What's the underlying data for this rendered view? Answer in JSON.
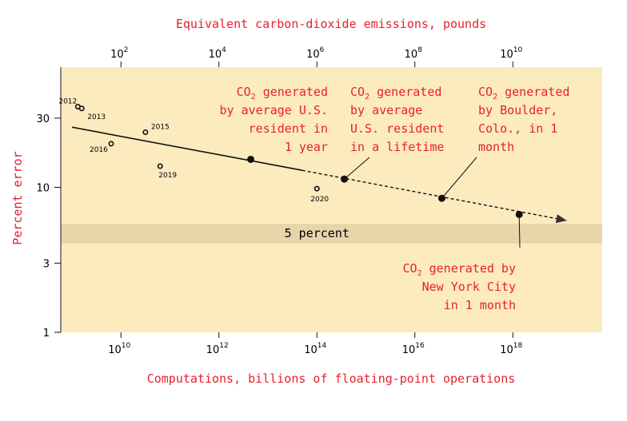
{
  "chart_data": {
    "type": "scatter",
    "title_top": "Equivalent carbon-dioxide emissions, pounds",
    "xlabel": "Computations, billions of floating-point operations",
    "ylabel": "Percent error",
    "x_scale": "log10",
    "y_scale": "log10",
    "xlim_log10": [
      8.6,
      19.5
    ],
    "ylim": [
      1,
      60
    ],
    "x_ticks": [
      {
        "exp": 10,
        "base": "10",
        "sup": "10"
      },
      {
        "exp": 12,
        "base": "10",
        "sup": "12"
      },
      {
        "exp": 14,
        "base": "10",
        "sup": "14"
      },
      {
        "exp": 16,
        "base": "10",
        "sup": "16"
      },
      {
        "exp": 18,
        "base": "10",
        "sup": "18"
      }
    ],
    "top_ticks": [
      {
        "exp": 2,
        "base": "10",
        "sup": "2"
      },
      {
        "exp": 4,
        "base": "10",
        "sup": "4"
      },
      {
        "exp": 6,
        "base": "10",
        "sup": "6"
      },
      {
        "exp": 8,
        "base": "10",
        "sup": "8"
      },
      {
        "exp": 10,
        "base": "10",
        "sup": "10"
      }
    ],
    "top_axis_map": {
      "ref_compute_exp": 10,
      "ref_co2_exp": 2,
      "slope": 1.0
    },
    "y_ticks": [
      {
        "value": 30,
        "label": "30"
      },
      {
        "value": 10,
        "label": "10"
      },
      {
        "value": 3,
        "label": "3"
      },
      {
        "value": 1,
        "label": "1"
      }
    ],
    "band": {
      "label": "5 percent",
      "y_low": 4.1,
      "y_high": 5.6
    },
    "models": [
      {
        "label": "2012",
        "x_log": 9.12,
        "y": 36
      },
      {
        "label": "2013",
        "x_log": 9.2,
        "y": 35
      },
      {
        "label": "2015",
        "x_log": 10.5,
        "y": 24
      },
      {
        "label": "2016",
        "x_log": 9.8,
        "y": 20
      },
      {
        "label": "2019",
        "x_log": 10.8,
        "y": 14
      },
      {
        "label": "2020",
        "x_log": 14.0,
        "y": 9.8
      }
    ],
    "trend_solid": [
      {
        "x_log": 9.0,
        "y": 26
      },
      {
        "x_log": 13.7,
        "y": 13.1
      }
    ],
    "trend_dashed": [
      {
        "x_log": 13.7,
        "y": 13.1
      },
      {
        "x_log": 19.1,
        "y": 5.9
      }
    ],
    "milestones": [
      {
        "x_log": 12.65,
        "y": 15.6
      },
      {
        "x_log": 14.56,
        "y": 11.4
      },
      {
        "x_log": 16.55,
        "y": 8.4
      },
      {
        "x_log": 18.13,
        "y": 6.5
      }
    ],
    "annotations": [
      {
        "lines": [
          [
            "CO",
            "2",
            " generated"
          ],
          [
            "by average U.S."
          ],
          [
            "resident in"
          ],
          [
            "1 year"
          ]
        ],
        "align": "end"
      },
      {
        "lines": [
          [
            "CO",
            "2",
            " generated"
          ],
          [
            "by average"
          ],
          [
            "U.S. resident"
          ],
          [
            "in a lifetime"
          ]
        ],
        "align": "start"
      },
      {
        "lines": [
          [
            "CO",
            "2",
            " generated"
          ],
          [
            "by Boulder,"
          ],
          [
            "Colo., in 1"
          ],
          [
            "month"
          ]
        ],
        "align": "start"
      },
      {
        "lines": [
          [
            "CO",
            "2",
            " generated by"
          ],
          [
            "New York City"
          ],
          [
            "in 1 month"
          ]
        ],
        "align": "end"
      }
    ]
  },
  "colors": {
    "background": "#fcebbf",
    "band": "#e8d5aa",
    "accent": "#e8202a",
    "ink": "#111111"
  }
}
